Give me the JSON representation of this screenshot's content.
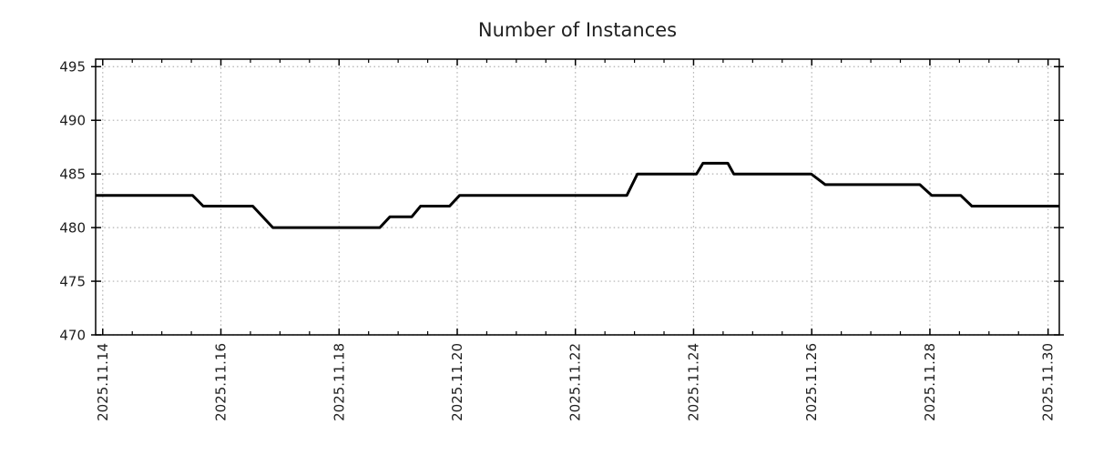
{
  "page": {
    "background": "#ffffff"
  },
  "chart_data": {
    "type": "line",
    "title": "Number of Instances",
    "xlabel": "",
    "ylabel": "",
    "x_unit": "day of November 2025 (decimal days)",
    "xlim": [
      13.88,
      30.19
    ],
    "ylim": [
      470,
      495.7
    ],
    "yticks": [
      {
        "value": 470,
        "label": "470"
      },
      {
        "value": 475,
        "label": "475"
      },
      {
        "value": 480,
        "label": "480"
      },
      {
        "value": 485,
        "label": "485"
      },
      {
        "value": 490,
        "label": "490"
      },
      {
        "value": 495,
        "label": "495"
      }
    ],
    "xticks": [
      {
        "value": 14,
        "label": "2025.11.14"
      },
      {
        "value": 16,
        "label": "2025.11.16"
      },
      {
        "value": 18,
        "label": "2025.11.18"
      },
      {
        "value": 20,
        "label": "2025.11.20"
      },
      {
        "value": 22,
        "label": "2025.11.22"
      },
      {
        "value": 24,
        "label": "2025.11.24"
      },
      {
        "value": 26,
        "label": "2025.11.26"
      },
      {
        "value": 28,
        "label": "2025.11.28"
      },
      {
        "value": 30,
        "label": "2025.11.30"
      }
    ],
    "x_minor_step": 0.5,
    "grid": {
      "show": true,
      "style": "dotted",
      "color": "#b0b0b0"
    },
    "legend": {
      "show": false
    },
    "series": [
      {
        "name": "instances",
        "color": "#000000",
        "line_width": 3,
        "points": [
          [
            13.88,
            483
          ],
          [
            15.52,
            483
          ],
          [
            15.7,
            482
          ],
          [
            16.54,
            482
          ],
          [
            16.88,
            480
          ],
          [
            18.69,
            480
          ],
          [
            18.86,
            481
          ],
          [
            19.23,
            481
          ],
          [
            19.38,
            482
          ],
          [
            19.87,
            482
          ],
          [
            20.04,
            483
          ],
          [
            22.87,
            483
          ],
          [
            23.05,
            485
          ],
          [
            24.05,
            485
          ],
          [
            24.16,
            486
          ],
          [
            24.58,
            486
          ],
          [
            24.68,
            485
          ],
          [
            25.99,
            485
          ],
          [
            26.23,
            484
          ],
          [
            27.83,
            484
          ],
          [
            28.03,
            483
          ],
          [
            28.52,
            483
          ],
          [
            28.71,
            482
          ],
          [
            30.19,
            482
          ]
        ]
      }
    ],
    "frame_color": "#000000",
    "text_color": "#202020"
  }
}
